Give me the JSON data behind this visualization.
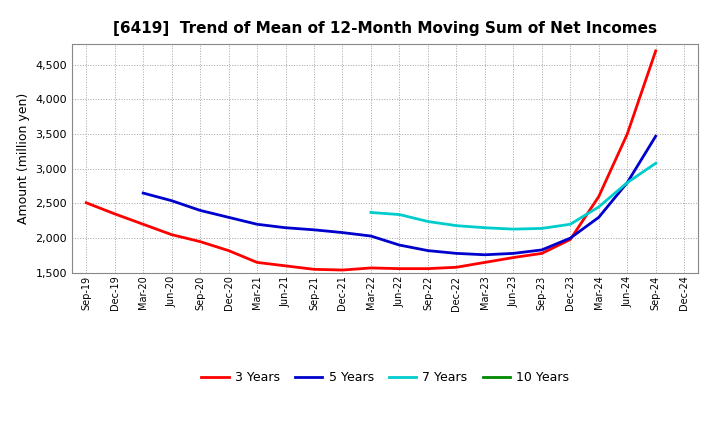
{
  "title": "[6419]  Trend of Mean of 12-Month Moving Sum of Net Incomes",
  "ylabel": "Amount (million yen)",
  "background_color": "#ffffff",
  "grid_color": "#aaaaaa",
  "ylim": [
    1500,
    4800
  ],
  "yticks": [
    1500,
    2000,
    2500,
    3000,
    3500,
    4000,
    4500
  ],
  "x_labels": [
    "Sep-19",
    "Dec-19",
    "Mar-20",
    "Jun-20",
    "Sep-20",
    "Dec-20",
    "Mar-21",
    "Jun-21",
    "Sep-21",
    "Dec-21",
    "Mar-22",
    "Jun-22",
    "Sep-22",
    "Dec-22",
    "Mar-23",
    "Jun-23",
    "Sep-23",
    "Dec-23",
    "Mar-24",
    "Jun-24",
    "Sep-24",
    "Dec-24"
  ],
  "series": {
    "3 Years": {
      "color": "#ff0000",
      "values": [
        2510,
        2350,
        2200,
        2050,
        1950,
        1820,
        1650,
        1600,
        1550,
        1540,
        1570,
        1560,
        1560,
        1580,
        1650,
        1720,
        1780,
        1980,
        2600,
        3500,
        4700,
        null
      ]
    },
    "5 Years": {
      "color": "#0000cc",
      "values": [
        null,
        null,
        2650,
        2540,
        2400,
        2300,
        2200,
        2150,
        2120,
        2080,
        2030,
        1900,
        1820,
        1780,
        1760,
        1780,
        1830,
        2000,
        2300,
        2800,
        3470,
        null
      ]
    },
    "7 Years": {
      "color": "#00cccc",
      "values": [
        null,
        null,
        null,
        null,
        null,
        null,
        null,
        null,
        null,
        null,
        2370,
        2340,
        2240,
        2180,
        2150,
        2130,
        2140,
        2200,
        2450,
        2800,
        3080,
        null
      ]
    },
    "10 Years": {
      "color": "#008800",
      "values": [
        null,
        null,
        null,
        null,
        null,
        null,
        null,
        null,
        null,
        null,
        null,
        null,
        null,
        null,
        null,
        null,
        null,
        null,
        null,
        null,
        null,
        null
      ]
    }
  },
  "legend_labels": [
    "3 Years",
    "5 Years",
    "7 Years",
    "10 Years"
  ]
}
